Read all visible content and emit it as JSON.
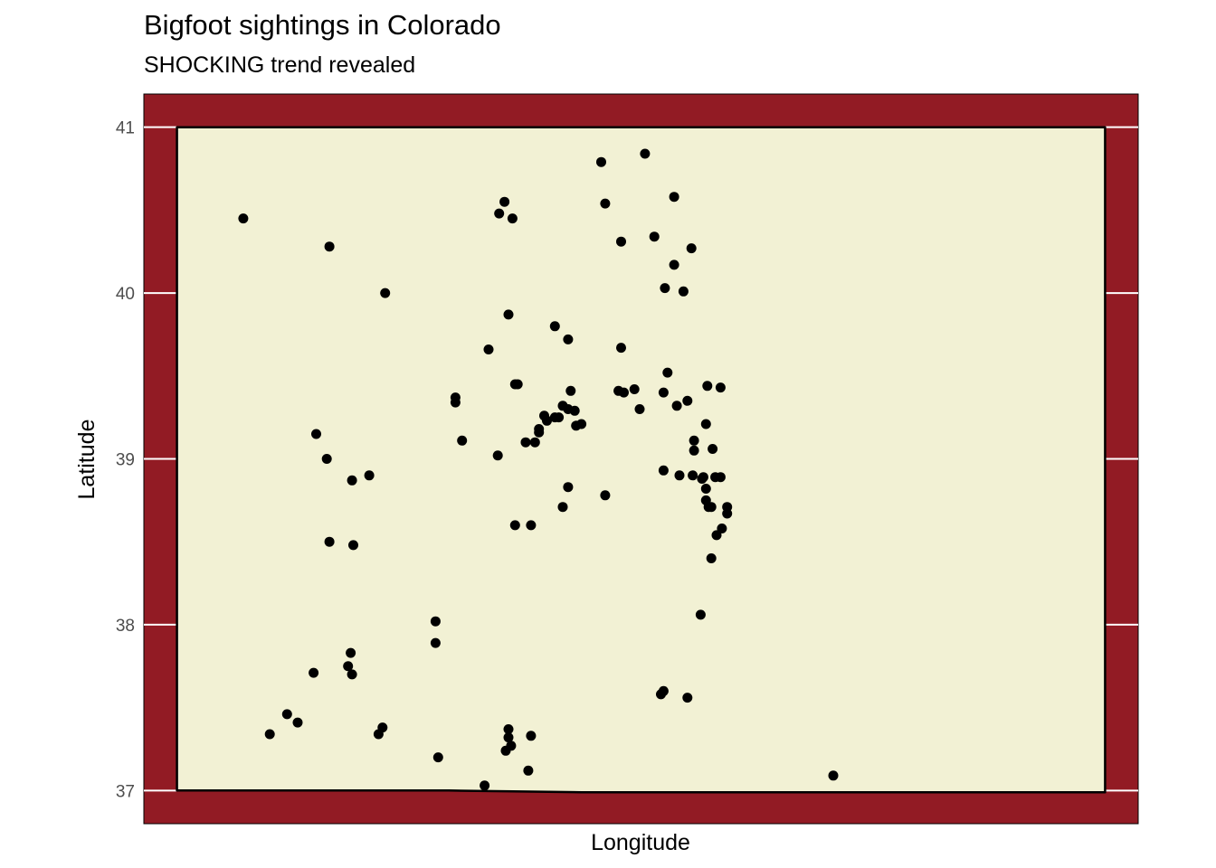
{
  "chart_data": {
    "type": "scatter",
    "title": "Bigfoot sightings in Colorado",
    "subtitle": "SHOCKING trend revealed",
    "xlabel": "Longitude",
    "ylabel": "Latitude",
    "y_ticks": [
      37,
      38,
      39,
      40,
      41
    ],
    "x_ticks": [],
    "xlim": [
      -109.3,
      -101.8
    ],
    "ylim": [
      36.8,
      41.2
    ],
    "colors": {
      "panel_background": "#921b24",
      "state_fill": "#f2f1d4",
      "state_outline": "#000000",
      "gridline": "#ffffff",
      "point": "#000000"
    },
    "state_boundary": [
      [
        -109.05,
        41.0
      ],
      [
        -105.5,
        41.0
      ],
      [
        -102.05,
        41.0
      ],
      [
        -102.05,
        36.99
      ],
      [
        -105.0,
        36.99
      ],
      [
        -106.0,
        36.99
      ],
      [
        -107.0,
        37.0
      ],
      [
        -109.05,
        37.0
      ]
    ],
    "points": [
      [
        -108.55,
        40.45
      ],
      [
        -107.9,
        40.28
      ],
      [
        -107.48,
        40.0
      ],
      [
        -108.0,
        39.15
      ],
      [
        -107.92,
        39.0
      ],
      [
        -107.73,
        38.87
      ],
      [
        -107.6,
        38.9
      ],
      [
        -107.9,
        38.5
      ],
      [
        -107.72,
        38.48
      ],
      [
        -107.74,
        37.83
      ],
      [
        -107.76,
        37.75
      ],
      [
        -107.73,
        37.7
      ],
      [
        -108.02,
        37.71
      ],
      [
        -108.35,
        37.34
      ],
      [
        -108.22,
        37.46
      ],
      [
        -108.14,
        37.41
      ],
      [
        -107.53,
        37.34
      ],
      [
        -107.5,
        37.38
      ],
      [
        -107.1,
        38.02
      ],
      [
        -107.1,
        37.89
      ],
      [
        -107.08,
        37.2
      ],
      [
        -106.73,
        37.03
      ],
      [
        -106.57,
        37.24
      ],
      [
        -106.55,
        37.37
      ],
      [
        -106.55,
        37.32
      ],
      [
        -106.53,
        37.27
      ],
      [
        -106.4,
        37.12
      ],
      [
        -106.38,
        37.33
      ],
      [
        -106.62,
        40.48
      ],
      [
        -106.58,
        40.55
      ],
      [
        -106.52,
        40.45
      ],
      [
        -106.7,
        39.66
      ],
      [
        -106.55,
        39.87
      ],
      [
        -106.5,
        39.45
      ],
      [
        -106.48,
        39.45
      ],
      [
        -106.95,
        39.37
      ],
      [
        -106.95,
        39.34
      ],
      [
        -106.9,
        39.11
      ],
      [
        -106.63,
        39.02
      ],
      [
        -106.42,
        39.1
      ],
      [
        -106.35,
        39.1
      ],
      [
        -106.32,
        39.18
      ],
      [
        -106.32,
        39.16
      ],
      [
        -106.28,
        39.26
      ],
      [
        -106.26,
        39.23
      ],
      [
        -106.2,
        39.25
      ],
      [
        -106.17,
        39.25
      ],
      [
        -106.14,
        39.32
      ],
      [
        -106.1,
        39.3
      ],
      [
        -106.05,
        39.29
      ],
      [
        -106.04,
        39.2
      ],
      [
        -106.0,
        39.21
      ],
      [
        -106.08,
        39.41
      ],
      [
        -106.1,
        39.72
      ],
      [
        -106.2,
        39.8
      ],
      [
        -106.1,
        38.83
      ],
      [
        -106.14,
        38.71
      ],
      [
        -106.38,
        38.6
      ],
      [
        -106.5,
        38.6
      ],
      [
        -105.82,
        38.78
      ],
      [
        -105.85,
        40.79
      ],
      [
        -105.82,
        40.54
      ],
      [
        -105.7,
        40.31
      ],
      [
        -105.7,
        39.67
      ],
      [
        -105.72,
        39.41
      ],
      [
        -105.68,
        39.4
      ],
      [
        -105.6,
        39.42
      ],
      [
        -105.56,
        39.3
      ],
      [
        -105.52,
        40.84
      ],
      [
        -105.45,
        40.34
      ],
      [
        -105.3,
        40.58
      ],
      [
        -105.3,
        40.17
      ],
      [
        -105.17,
        40.27
      ],
      [
        -105.37,
        40.03
      ],
      [
        -105.23,
        40.01
      ],
      [
        -105.35,
        39.52
      ],
      [
        -105.38,
        39.4
      ],
      [
        -105.28,
        39.32
      ],
      [
        -105.2,
        39.35
      ],
      [
        -105.05,
        39.44
      ],
      [
        -104.95,
        39.43
      ],
      [
        -105.06,
        39.21
      ],
      [
        -105.15,
        39.11
      ],
      [
        -105.15,
        39.05
      ],
      [
        -105.01,
        39.06
      ],
      [
        -104.99,
        38.89
      ],
      [
        -104.95,
        38.89
      ],
      [
        -105.08,
        38.89
      ],
      [
        -104.9,
        38.71
      ],
      [
        -104.9,
        38.67
      ],
      [
        -105.02,
        38.71
      ],
      [
        -105.04,
        38.71
      ],
      [
        -105.06,
        38.75
      ],
      [
        -105.09,
        38.88
      ],
      [
        -105.16,
        38.9
      ],
      [
        -105.26,
        38.9
      ],
      [
        -105.38,
        38.93
      ],
      [
        -104.98,
        38.54
      ],
      [
        -104.94,
        38.58
      ],
      [
        -105.02,
        38.4
      ],
      [
        -105.1,
        38.06
      ],
      [
        -105.06,
        38.82
      ],
      [
        -105.38,
        37.6
      ],
      [
        -105.4,
        37.58
      ],
      [
        -105.2,
        37.56
      ],
      [
        -104.1,
        37.09
      ]
    ]
  }
}
